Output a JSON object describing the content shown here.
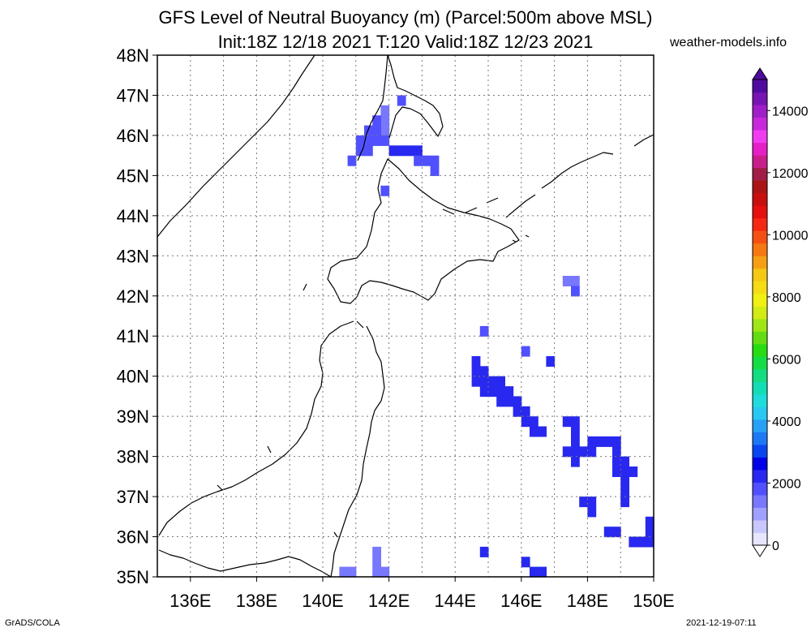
{
  "title": {
    "line1": "GFS Level of Neutral Buoyancy (m) (Parcel:500m above MSL)",
    "line2": "Init:18Z 12/18 2021 T:120 Valid:18Z 12/23 2021"
  },
  "site": "weather-models.info",
  "credit": "GrADS/COLA",
  "timestamp": "2021-12-19-07:11",
  "map": {
    "lat_labels": [
      "48N",
      "47N",
      "46N",
      "45N",
      "44N",
      "43N",
      "42N",
      "41N",
      "40N",
      "39N",
      "38N",
      "37N",
      "36N",
      "35N"
    ],
    "lon_labels": [
      "136E",
      "138E",
      "140E",
      "142E",
      "144E",
      "146E",
      "148E",
      "150E"
    ],
    "lat_range": [
      35,
      48
    ],
    "lon_range": [
      135,
      150
    ],
    "grid": "dotted"
  },
  "colorbar": {
    "labels": [
      "14000",
      "12000",
      "10000",
      "8000",
      "6000",
      "4000",
      "2000",
      "0"
    ],
    "range": [
      0,
      15000
    ],
    "colors": [
      "#e6e6ff",
      "#c8c8ff",
      "#a0a0ff",
      "#7878ff",
      "#5050ff",
      "#2828f0",
      "#0000e6",
      "#0a46f0",
      "#1e78f5",
      "#28a0f5",
      "#28c8f0",
      "#1edcdc",
      "#14dcb4",
      "#14dc82",
      "#14dc46",
      "#28dc14",
      "#64dc14",
      "#a0e614",
      "#d2eb14",
      "#f0f014",
      "#f5dc14",
      "#f5c814",
      "#f5a014",
      "#f57814",
      "#f55014",
      "#f52814",
      "#e60f0f",
      "#c80f0f",
      "#aa1414",
      "#a01e46",
      "#c81e8c",
      "#e61ec8",
      "#f03cf0",
      "#c828dc",
      "#a01ec8",
      "#7814b4",
      "#500aa0"
    ]
  },
  "chart_data": {
    "type": "heatmap",
    "title": "GFS Level of Neutral Buoyancy (m) (Parcel:500m above MSL)",
    "cell_size_deg": 0.25,
    "cells": [
      {
        "lon": 142.25,
        "lat": 46.75,
        "v": 1800
      },
      {
        "lon": 141.75,
        "lat": 46.5,
        "v": 1500
      },
      {
        "lon": 141.75,
        "lat": 46.25,
        "v": 1500
      },
      {
        "lon": 141.5,
        "lat": 46.25,
        "v": 1800
      },
      {
        "lon": 141.75,
        "lat": 46.0,
        "v": 1500
      },
      {
        "lon": 141.5,
        "lat": 46.0,
        "v": 1800
      },
      {
        "lon": 141.25,
        "lat": 46.0,
        "v": 2000
      },
      {
        "lon": 141.75,
        "lat": 45.75,
        "v": 2000
      },
      {
        "lon": 141.5,
        "lat": 45.75,
        "v": 2000
      },
      {
        "lon": 141.25,
        "lat": 45.75,
        "v": 2000
      },
      {
        "lon": 141.0,
        "lat": 45.75,
        "v": 2000
      },
      {
        "lon": 141.25,
        "lat": 45.5,
        "v": 2000
      },
      {
        "lon": 141.0,
        "lat": 45.5,
        "v": 2000
      },
      {
        "lon": 142.0,
        "lat": 45.5,
        "v": 2200
      },
      {
        "lon": 142.25,
        "lat": 45.5,
        "v": 2200
      },
      {
        "lon": 142.5,
        "lat": 45.5,
        "v": 2200
      },
      {
        "lon": 142.75,
        "lat": 45.5,
        "v": 2200
      },
      {
        "lon": 142.75,
        "lat": 45.25,
        "v": 2000
      },
      {
        "lon": 143.0,
        "lat": 45.25,
        "v": 2000
      },
      {
        "lon": 143.25,
        "lat": 45.25,
        "v": 2000
      },
      {
        "lon": 143.25,
        "lat": 45.0,
        "v": 2000
      },
      {
        "lon": 140.75,
        "lat": 45.25,
        "v": 2000
      },
      {
        "lon": 141.75,
        "lat": 44.5,
        "v": 2000
      },
      {
        "lon": 147.25,
        "lat": 42.25,
        "v": 1500
      },
      {
        "lon": 147.5,
        "lat": 42.25,
        "v": 1500
      },
      {
        "lon": 147.5,
        "lat": 42.0,
        "v": 1800
      },
      {
        "lon": 144.75,
        "lat": 41.0,
        "v": 2000
      },
      {
        "lon": 146.0,
        "lat": 40.5,
        "v": 2000
      },
      {
        "lon": 146.75,
        "lat": 40.25,
        "v": 2200
      },
      {
        "lon": 144.5,
        "lat": 40.25,
        "v": 2200
      },
      {
        "lon": 144.5,
        "lat": 40.0,
        "v": 2200
      },
      {
        "lon": 144.75,
        "lat": 40.0,
        "v": 2200
      },
      {
        "lon": 144.5,
        "lat": 39.75,
        "v": 2200
      },
      {
        "lon": 144.75,
        "lat": 39.75,
        "v": 2200
      },
      {
        "lon": 145.0,
        "lat": 39.75,
        "v": 2200
      },
      {
        "lon": 145.25,
        "lat": 39.75,
        "v": 2200
      },
      {
        "lon": 144.75,
        "lat": 39.5,
        "v": 2200
      },
      {
        "lon": 145.0,
        "lat": 39.5,
        "v": 2200
      },
      {
        "lon": 145.25,
        "lat": 39.5,
        "v": 2200
      },
      {
        "lon": 145.5,
        "lat": 39.5,
        "v": 2200
      },
      {
        "lon": 145.25,
        "lat": 39.25,
        "v": 2200
      },
      {
        "lon": 145.5,
        "lat": 39.25,
        "v": 2200
      },
      {
        "lon": 145.75,
        "lat": 39.25,
        "v": 2200
      },
      {
        "lon": 145.75,
        "lat": 39.0,
        "v": 2200
      },
      {
        "lon": 146.0,
        "lat": 39.0,
        "v": 2200
      },
      {
        "lon": 146.0,
        "lat": 38.75,
        "v": 2200
      },
      {
        "lon": 146.25,
        "lat": 38.75,
        "v": 2200
      },
      {
        "lon": 146.25,
        "lat": 38.5,
        "v": 2200
      },
      {
        "lon": 146.5,
        "lat": 38.5,
        "v": 2200
      },
      {
        "lon": 147.25,
        "lat": 38.75,
        "v": 2200
      },
      {
        "lon": 147.5,
        "lat": 38.75,
        "v": 2200
      },
      {
        "lon": 147.5,
        "lat": 38.5,
        "v": 2200
      },
      {
        "lon": 147.5,
        "lat": 38.25,
        "v": 2200
      },
      {
        "lon": 147.25,
        "lat": 38.0,
        "v": 2200
      },
      {
        "lon": 147.5,
        "lat": 38.0,
        "v": 2200
      },
      {
        "lon": 147.75,
        "lat": 38.0,
        "v": 2200
      },
      {
        "lon": 148.0,
        "lat": 38.0,
        "v": 2200
      },
      {
        "lon": 147.5,
        "lat": 37.75,
        "v": 2200
      },
      {
        "lon": 148.0,
        "lat": 38.25,
        "v": 2200
      },
      {
        "lon": 148.25,
        "lat": 38.25,
        "v": 2200
      },
      {
        "lon": 148.5,
        "lat": 38.25,
        "v": 2200
      },
      {
        "lon": 148.75,
        "lat": 38.25,
        "v": 2200
      },
      {
        "lon": 148.75,
        "lat": 38.0,
        "v": 2200
      },
      {
        "lon": 148.75,
        "lat": 37.75,
        "v": 2200
      },
      {
        "lon": 149.0,
        "lat": 37.75,
        "v": 2200
      },
      {
        "lon": 148.75,
        "lat": 37.5,
        "v": 2200
      },
      {
        "lon": 149.0,
        "lat": 37.5,
        "v": 2200
      },
      {
        "lon": 149.25,
        "lat": 37.5,
        "v": 2200
      },
      {
        "lon": 149.0,
        "lat": 37.25,
        "v": 2200
      },
      {
        "lon": 149.0,
        "lat": 37.0,
        "v": 2200
      },
      {
        "lon": 149.0,
        "lat": 36.75,
        "v": 2200
      },
      {
        "lon": 147.75,
        "lat": 36.75,
        "v": 2200
      },
      {
        "lon": 148.0,
        "lat": 36.75,
        "v": 2200
      },
      {
        "lon": 148.0,
        "lat": 36.5,
        "v": 2200
      },
      {
        "lon": 148.5,
        "lat": 36.0,
        "v": 2200
      },
      {
        "lon": 148.75,
        "lat": 36.0,
        "v": 2200
      },
      {
        "lon": 149.75,
        "lat": 36.25,
        "v": 2200
      },
      {
        "lon": 149.75,
        "lat": 36.0,
        "v": 2200
      },
      {
        "lon": 149.25,
        "lat": 35.75,
        "v": 2200
      },
      {
        "lon": 149.5,
        "lat": 35.75,
        "v": 2200
      },
      {
        "lon": 149.75,
        "lat": 35.75,
        "v": 2200
      },
      {
        "lon": 144.75,
        "lat": 35.5,
        "v": 2200
      },
      {
        "lon": 146.0,
        "lat": 35.25,
        "v": 2200
      },
      {
        "lon": 146.25,
        "lat": 35.0,
        "v": 2200
      },
      {
        "lon": 146.5,
        "lat": 35.0,
        "v": 2200
      },
      {
        "lon": 141.5,
        "lat": 35.5,
        "v": 1500
      },
      {
        "lon": 141.5,
        "lat": 35.25,
        "v": 1500
      },
      {
        "lon": 141.5,
        "lat": 35.0,
        "v": 1500
      },
      {
        "lon": 141.75,
        "lat": 35.0,
        "v": 1500
      },
      {
        "lon": 140.5,
        "lat": 35.0,
        "v": 1500
      },
      {
        "lon": 140.75,
        "lat": 35.0,
        "v": 1500
      }
    ]
  }
}
